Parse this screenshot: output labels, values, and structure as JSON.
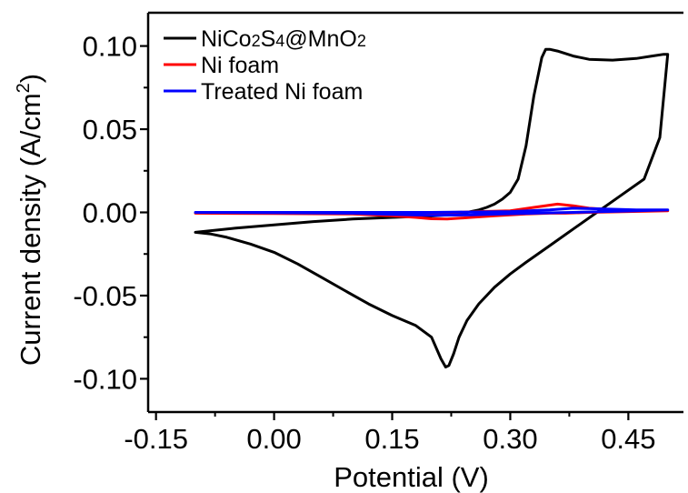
{
  "chart_data": {
    "type": "line",
    "xlabel": "Potential (V)",
    "ylabel_main": "Current density (A/cm",
    "ylabel_sup": "2",
    "ylabel_close": ")",
    "xlim": [
      -0.16,
      0.52
    ],
    "ylim": [
      -0.12,
      0.12
    ],
    "xticks": [
      -0.15,
      0.0,
      0.15,
      0.3,
      0.45
    ],
    "xtick_labels": [
      "-0.15",
      "0.00",
      "0.15",
      "0.30",
      "0.45"
    ],
    "yticks": [
      -0.1,
      -0.05,
      0.0,
      0.05,
      0.1
    ],
    "ytick_labels": [
      "-0.10",
      "-0.05",
      "0.00",
      "0.05",
      "0.10"
    ],
    "legend_position": "top-left",
    "series": [
      {
        "name_parts": [
          "NiCo",
          "2",
          "S",
          "4",
          "@MnO",
          "2"
        ],
        "color": "#000000",
        "x": [
          -0.1,
          -0.05,
          0.0,
          0.05,
          0.1,
          0.15,
          0.2,
          0.22,
          0.24,
          0.25,
          0.26,
          0.27,
          0.28,
          0.29,
          0.3,
          0.31,
          0.32,
          0.33,
          0.34,
          0.345,
          0.35,
          0.36,
          0.38,
          0.4,
          0.43,
          0.46,
          0.48,
          0.495,
          0.5,
          0.49,
          0.47,
          0.44,
          0.41,
          0.38,
          0.35,
          0.32,
          0.3,
          0.28,
          0.26,
          0.245,
          0.235,
          0.228,
          0.222,
          0.218,
          0.212,
          0.2,
          0.18,
          0.15,
          0.12,
          0.09,
          0.06,
          0.03,
          0.0,
          -0.03,
          -0.06,
          -0.08,
          -0.1
        ],
        "y": [
          -0.012,
          -0.0095,
          -0.0075,
          -0.0055,
          -0.004,
          -0.003,
          -0.0022,
          -0.0015,
          -0.0005,
          0.0005,
          0.0015,
          0.003,
          0.005,
          0.008,
          0.012,
          0.02,
          0.04,
          0.07,
          0.093,
          0.098,
          0.098,
          0.097,
          0.094,
          0.092,
          0.0915,
          0.0925,
          0.094,
          0.095,
          0.095,
          0.045,
          0.02,
          0.01,
          0.0,
          -0.01,
          -0.02,
          -0.03,
          -0.037,
          -0.045,
          -0.055,
          -0.065,
          -0.075,
          -0.085,
          -0.092,
          -0.093,
          -0.088,
          -0.075,
          -0.068,
          -0.062,
          -0.055,
          -0.047,
          -0.039,
          -0.031,
          -0.024,
          -0.019,
          -0.015,
          -0.013,
          -0.012
        ]
      },
      {
        "name": "Ni foam",
        "color": "#ff0000",
        "x": [
          -0.1,
          0.0,
          0.1,
          0.15,
          0.2,
          0.23,
          0.26,
          0.3,
          0.33,
          0.36,
          0.38,
          0.4,
          0.45,
          0.5,
          0.45,
          0.4,
          0.37,
          0.35,
          0.32,
          0.28,
          0.25,
          0.22,
          0.2,
          0.18,
          0.15,
          0.1,
          0.0,
          -0.1
        ],
        "y": [
          -0.0005,
          -0.0005,
          -0.0005,
          -0.0003,
          -0.0004,
          0.0,
          0.0005,
          0.001,
          0.003,
          0.005,
          0.004,
          0.0025,
          0.001,
          0.001,
          0.0005,
          0.0,
          -0.0005,
          -0.0005,
          -0.001,
          -0.002,
          -0.003,
          -0.004,
          -0.0038,
          -0.003,
          -0.002,
          -0.001,
          -0.0007,
          -0.0005
        ]
      },
      {
        "name": "Treated Ni foam",
        "color": "#0000ff",
        "x": [
          -0.1,
          0.0,
          0.1,
          0.2,
          0.25,
          0.3,
          0.35,
          0.38,
          0.42,
          0.46,
          0.5,
          0.46,
          0.42,
          0.38,
          0.35,
          0.3,
          0.25,
          0.2,
          0.15,
          0.1,
          0.0,
          -0.1
        ],
        "y": [
          0.0,
          0.0,
          0.0,
          0.0,
          0.0002,
          0.0005,
          0.0015,
          0.0025,
          0.002,
          0.0015,
          0.0015,
          0.001,
          0.0005,
          0.0,
          -0.0003,
          -0.0008,
          -0.0015,
          -0.0018,
          -0.0012,
          -0.0005,
          -0.0002,
          0.0
        ]
      }
    ]
  }
}
